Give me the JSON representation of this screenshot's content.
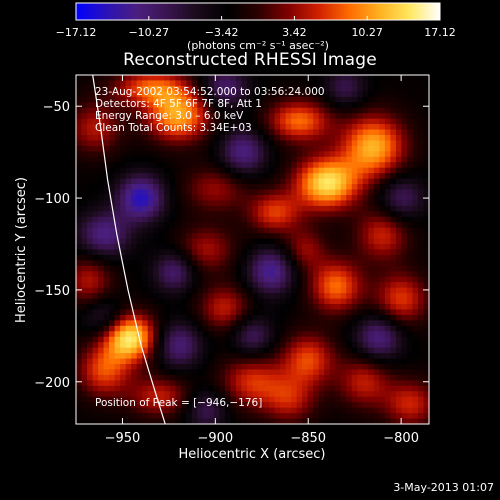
{
  "chart_data": {
    "type": "heatmap",
    "title": "Reconstructed RHESSI Image",
    "xlabel": "Heliocentric X (arcsec)",
    "ylabel": "Heliocentric Y (arcsec)",
    "xlim": [
      -975,
      -785
    ],
    "ylim": [
      -223,
      -33
    ],
    "x_ticks": [
      -950,
      -900,
      -850,
      -800
    ],
    "y_ticks": [
      -50,
      -100,
      -150,
      -200
    ],
    "x_tick_labels": [
      "−950",
      "−900",
      "−850",
      "−800"
    ],
    "y_tick_labels": [
      "−50",
      "−100",
      "−150",
      "−200"
    ],
    "annotations": [
      "23-Aug-2002 03:54:52.000 to 03:56:24.000",
      "Detectors: 4F 5F 6F 7F 8F, Att 1",
      "Energy Range: 3.0 – 6.0 keV",
      "Clean    Total Counts: 3.34E+03"
    ],
    "peak_label": "Position of Peak = [−946,−176]",
    "peak_position": [
      -946,
      -176
    ],
    "blobs": [
      {
        "x": -946,
        "y": -176,
        "value": 17.1,
        "sx": 10,
        "sy": 9
      },
      {
        "x": -960,
        "y": -194,
        "value": 9.5,
        "sx": 10,
        "sy": 10
      },
      {
        "x": -930,
        "y": -208,
        "value": 7.5,
        "sx": 12,
        "sy": 8
      },
      {
        "x": -920,
        "y": -55,
        "value": 13.5,
        "sx": 12,
        "sy": 10
      },
      {
        "x": -935,
        "y": -40,
        "value": 10.0,
        "sx": 14,
        "sy": 7
      },
      {
        "x": -965,
        "y": -62,
        "value": 7.0,
        "sx": 10,
        "sy": 10
      },
      {
        "x": -840,
        "y": -92,
        "value": 16.5,
        "sx": 12,
        "sy": 10
      },
      {
        "x": -815,
        "y": -72,
        "value": 14.0,
        "sx": 12,
        "sy": 12
      },
      {
        "x": -855,
        "y": -58,
        "value": 11.0,
        "sx": 12,
        "sy": 8
      },
      {
        "x": -868,
        "y": -108,
        "value": 9.0,
        "sx": 10,
        "sy": 8
      },
      {
        "x": -810,
        "y": -120,
        "value": 8.0,
        "sx": 10,
        "sy": 10
      },
      {
        "x": -835,
        "y": -148,
        "value": 11.0,
        "sx": 10,
        "sy": 10
      },
      {
        "x": -800,
        "y": -155,
        "value": 9.0,
        "sx": 10,
        "sy": 10
      },
      {
        "x": -852,
        "y": -128,
        "value": 6.0,
        "sx": 8,
        "sy": 8
      },
      {
        "x": -895,
        "y": -160,
        "value": 7.5,
        "sx": 10,
        "sy": 9
      },
      {
        "x": -905,
        "y": -128,
        "value": 6.5,
        "sx": 11,
        "sy": 9
      },
      {
        "x": -968,
        "y": -145,
        "value": 7.0,
        "sx": 9,
        "sy": 10
      },
      {
        "x": -900,
        "y": -95,
        "value": 6.0,
        "sx": 12,
        "sy": 9
      },
      {
        "x": -880,
        "y": -200,
        "value": 8.5,
        "sx": 12,
        "sy": 10
      },
      {
        "x": -860,
        "y": -210,
        "value": 7.0,
        "sx": 10,
        "sy": 9
      },
      {
        "x": -850,
        "y": -188,
        "value": 9.5,
        "sx": 10,
        "sy": 10
      },
      {
        "x": -820,
        "y": -200,
        "value": 7.5,
        "sx": 10,
        "sy": 10
      },
      {
        "x": -795,
        "y": -212,
        "value": 8.0,
        "sx": 10,
        "sy": 9
      },
      {
        "x": -940,
        "y": -100,
        "value": -12.0,
        "sx": 9,
        "sy": 9
      },
      {
        "x": -960,
        "y": -120,
        "value": -9.0,
        "sx": 10,
        "sy": 9
      },
      {
        "x": -922,
        "y": -140,
        "value": -8.0,
        "sx": 8,
        "sy": 8
      },
      {
        "x": -885,
        "y": -75,
        "value": -9.0,
        "sx": 9,
        "sy": 9
      },
      {
        "x": -870,
        "y": -140,
        "value": -10.0,
        "sx": 9,
        "sy": 9
      },
      {
        "x": -800,
        "y": -100,
        "value": -7.0,
        "sx": 9,
        "sy": 9
      },
      {
        "x": -812,
        "y": -176,
        "value": -9.0,
        "sx": 9,
        "sy": 9
      },
      {
        "x": -880,
        "y": -175,
        "value": -7.0,
        "sx": 8,
        "sy": 8
      },
      {
        "x": -920,
        "y": -180,
        "value": -8.5,
        "sx": 9,
        "sy": 9
      },
      {
        "x": -895,
        "y": -40,
        "value": -8.0,
        "sx": 9,
        "sy": 8
      },
      {
        "x": -960,
        "y": -165,
        "value": -6.0,
        "sx": 8,
        "sy": 8
      },
      {
        "x": -905,
        "y": -215,
        "value": -6.5,
        "sx": 8,
        "sy": 8
      },
      {
        "x": -830,
        "y": -40,
        "value": -6.0,
        "sx": 8,
        "sy": 8
      }
    ],
    "background_value": -2.5,
    "limb": [
      [
        -966,
        -33
      ],
      [
        -962,
        -60
      ],
      [
        -958,
        -90
      ],
      [
        -953,
        -120
      ],
      [
        -947,
        -150
      ],
      [
        -940,
        -180
      ],
      [
        -931,
        -210
      ],
      [
        -927,
        -223
      ]
    ]
  },
  "colorbar": {
    "min": -17.12,
    "max": 17.12,
    "tick_labels": [
      "−17.12",
      "−10.27",
      "−3.42",
      "3.42",
      "10.27",
      "17.12"
    ],
    "units_label": "(photons cm⁻² s⁻¹ asec⁻²)",
    "colors": [
      "#0000ff",
      "#2a12b8",
      "#4a1f80",
      "#3a1450",
      "#1a0a1a",
      "#000000",
      "#2a0000",
      "#800000",
      "#d02000",
      "#ff6a00",
      "#ffb020",
      "#ffe860",
      "#ffffff"
    ]
  },
  "footer": {
    "date": "3-May-2013 01:07"
  }
}
